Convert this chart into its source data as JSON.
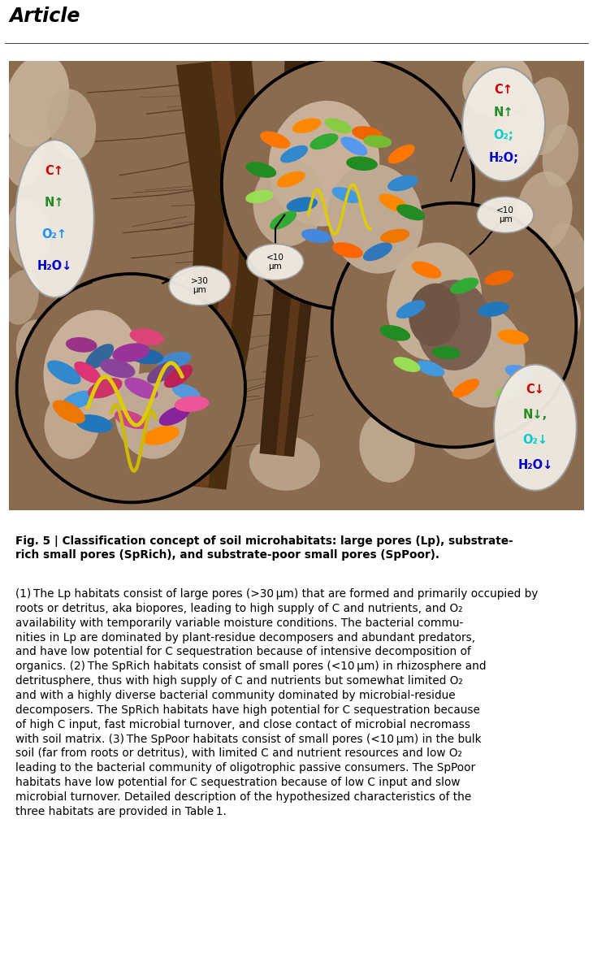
{
  "title": "Article",
  "fig_label": "Fig. 5 | ",
  "fig_caption_bold": "Classification concept of soil microhabitats: large pores (Lp), substrate-rich small pores (SpRich), and substrate-poor small pores (SpPoor).",
  "fig_caption_normal": " (1) The Lp habitats consist of large pores (>30 μm) that are formed and primarily occupied by roots or detritus, aka biopores, leading to high supply of C and nutrients, and O₂ availability with temporarily variable moisture conditions. The bacterial communities in Lp are dominated by plant-residue decomposers and abundant predators, and have low potential for C sequestration because of intensive decomposition of organics. (2) The SpRich habitats consist of small pores (<10 μm) in rhizosphere and detritusphere, thus with high supply of C and nutrients but somewhat limited O₂ and with a highly diverse bacterial community dominated by microbial-residue decomposers. The SpRich habitats have high potential for C sequestration because of high C input, fast microbial turnover, and close contact of microbial necromass with soil matrix. (3) The SpPoor habitats consist of small pores (<10 μm) in the bulk soil (far from roots or detritus), with limited C and nutrient resources and low O₂ leading to the bacterial community of oligotrophic passive consumers. The SpPoor habitats have low potential for C sequestration because of low C input and slow microbial turnover. Detailed description of the hypothesized characteristics of the three habitats are provided in Table 1.",
  "soil_color": "#8B6B50",
  "root_dark": "#4A2E10",
  "root_medium": "#6B4020",
  "light_patch_color": "#C4AE96",
  "lp_text": [
    "C↑",
    "N↑",
    "O₂↑",
    "H₂O↓"
  ],
  "lp_text_colors": [
    "#CC0000",
    "#228B22",
    "#1E90FF",
    "#0000CC"
  ],
  "sprich_text": [
    "C↑",
    "N↑",
    "O₂;",
    "H₂O;"
  ],
  "sprich_text_colors": [
    "#CC0000",
    "#228B22",
    "#00CED1",
    "#0000CC"
  ],
  "sppoor_text": [
    "C↓",
    "N↓,",
    "O₂↓",
    "H₂O↓"
  ],
  "sppoor_text_colors": [
    "#CC0000",
    "#228B22",
    "#00CED1",
    "#0000CC"
  ]
}
